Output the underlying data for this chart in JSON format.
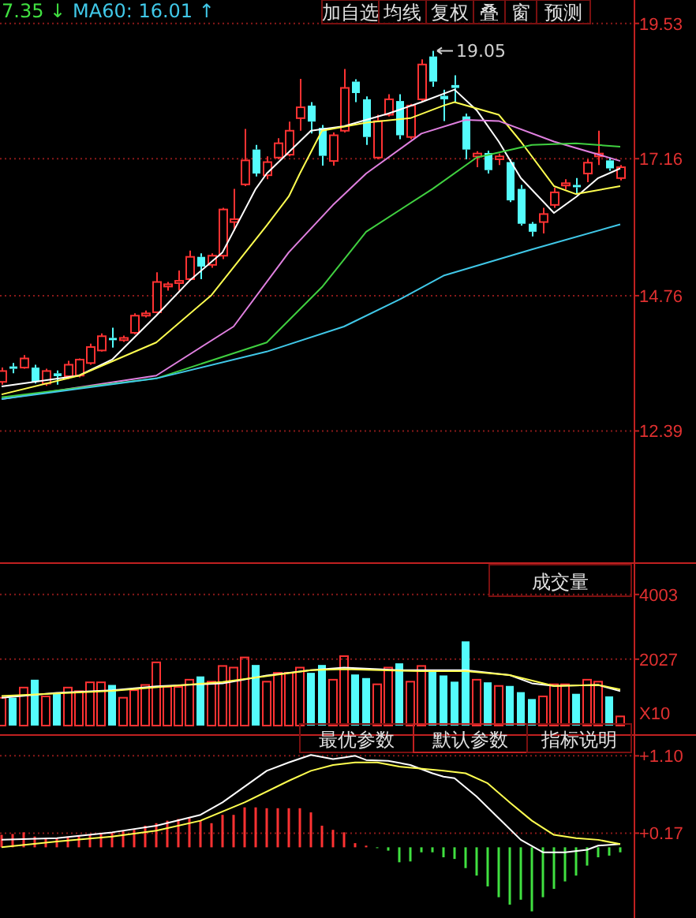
{
  "chart_data": [
    {
      "type": "candlestick",
      "categories": [
        null,
        null,
        null,
        null,
        null,
        null,
        null,
        null,
        null,
        null,
        null,
        null,
        null,
        null,
        null,
        null,
        null,
        null,
        null,
        null,
        null,
        null,
        null,
        null,
        null,
        null,
        null,
        null,
        null,
        null,
        null,
        null,
        null,
        null,
        null,
        null,
        null,
        null,
        null,
        null,
        null,
        null,
        null,
        null,
        null,
        null,
        null,
        null,
        null,
        null,
        null,
        null,
        null,
        null,
        null,
        null,
        null
      ],
      "ohlc": [
        [
          13.25,
          13.5,
          13.2,
          13.44
        ],
        [
          13.52,
          13.58,
          13.4,
          13.48
        ],
        [
          13.5,
          13.72,
          13.48,
          13.66
        ],
        [
          13.5,
          13.55,
          13.22,
          13.25
        ],
        [
          13.22,
          13.48,
          13.18,
          13.44
        ],
        [
          13.4,
          13.45,
          13.2,
          13.35
        ],
        [
          13.35,
          13.62,
          13.3,
          13.55
        ],
        [
          13.36,
          13.66,
          13.33,
          13.64
        ],
        [
          13.58,
          13.92,
          13.55,
          13.86
        ],
        [
          13.8,
          14.1,
          13.78,
          14.05
        ],
        [
          14.02,
          14.2,
          13.85,
          13.98
        ],
        [
          13.98,
          14.06,
          13.95,
          14.02
        ],
        [
          14.11,
          14.45,
          14.08,
          14.41
        ],
        [
          14.41,
          14.5,
          14.38,
          14.45
        ],
        [
          14.47,
          15.17,
          14.45,
          15.0
        ],
        [
          14.92,
          15.0,
          14.85,
          14.96
        ],
        [
          14.98,
          15.2,
          14.85,
          15.02
        ],
        [
          15.05,
          15.55,
          15.02,
          15.44
        ],
        [
          15.44,
          15.5,
          15.05,
          15.27
        ],
        [
          15.3,
          15.5,
          15.25,
          15.46
        ],
        [
          15.46,
          16.3,
          15.4,
          16.27
        ],
        [
          16.05,
          16.63,
          15.9,
          16.1
        ],
        [
          16.71,
          17.68,
          16.68,
          17.13
        ],
        [
          17.32,
          17.4,
          16.85,
          16.9
        ],
        [
          16.87,
          17.2,
          16.8,
          17.1
        ],
        [
          17.18,
          17.52,
          17.15,
          17.43
        ],
        [
          17.23,
          17.81,
          17.2,
          17.65
        ],
        [
          17.87,
          18.56,
          17.65,
          18.06
        ],
        [
          18.09,
          18.15,
          17.6,
          17.81
        ],
        [
          17.7,
          17.75,
          17.04,
          17.21
        ],
        [
          17.12,
          17.62,
          17.04,
          17.57
        ],
        [
          17.65,
          18.73,
          17.62,
          18.4
        ],
        [
          18.51,
          18.55,
          18.15,
          18.31
        ],
        [
          18.2,
          18.25,
          17.4,
          17.54
        ],
        [
          17.18,
          17.93,
          17.15,
          17.82
        ],
        [
          17.93,
          18.29,
          17.9,
          18.2
        ],
        [
          18.17,
          18.29,
          17.5,
          17.57
        ],
        [
          17.54,
          18.12,
          17.5,
          18.09
        ],
        [
          18.2,
          18.9,
          18.15,
          18.81
        ],
        [
          18.95,
          19.05,
          18.42,
          18.51
        ],
        [
          18.26,
          18.37,
          17.82,
          18.2
        ],
        [
          18.45,
          18.62,
          18.15,
          18.4
        ],
        [
          17.9,
          17.95,
          17.15,
          17.32
        ],
        [
          17.2,
          17.29,
          17.01,
          17.25
        ],
        [
          17.26,
          17.3,
          16.9,
          16.96
        ],
        [
          17.15,
          17.25,
          17.05,
          17.2
        ],
        [
          17.1,
          17.15,
          16.4,
          16.43
        ],
        [
          16.63,
          16.7,
          15.99,
          16.02
        ],
        [
          16.02,
          16.05,
          15.8,
          15.88
        ],
        [
          16.05,
          16.3,
          15.85,
          16.19
        ],
        [
          16.35,
          16.65,
          16.3,
          16.57
        ],
        [
          16.69,
          16.8,
          16.62,
          16.73
        ],
        [
          16.7,
          16.82,
          16.55,
          16.66
        ],
        [
          16.9,
          17.15,
          16.75,
          17.09
        ],
        [
          17.2,
          17.65,
          17.05,
          17.25
        ],
        [
          17.13,
          17.18,
          16.95,
          16.99
        ],
        [
          16.82,
          17.05,
          16.78,
          17.01
        ]
      ],
      "series": [
        {
          "type": "line",
          "color": "#ffffff",
          "values": [
            13.17,
            null,
            null,
            null,
            null,
            null,
            null,
            13.36,
            null,
            null,
            13.64,
            null,
            null,
            null,
            14.41,
            null,
            null,
            15.02,
            null,
            null,
            15.52,
            null,
            null,
            16.63,
            16.9,
            null,
            null,
            null,
            17.65,
            null,
            null,
            17.73,
            null,
            null,
            null,
            17.95,
            null,
            null,
            18.15,
            null,
            null,
            18.37,
            null,
            18.01,
            null,
            17.46,
            null,
            16.82,
            null,
            null,
            16.21,
            null,
            16.49,
            null,
            16.82,
            null,
            16.99
          ]
        },
        {
          "type": "line",
          "color": "#ffff50",
          "values": [
            13.03,
            null,
            null,
            null,
            null,
            null,
            null,
            13.36,
            null,
            null,
            null,
            null,
            null,
            null,
            13.94,
            null,
            null,
            null,
            null,
            14.77,
            null,
            null,
            null,
            null,
            15.99,
            null,
            16.5,
            16.9,
            null,
            17.65,
            null,
            null,
            null,
            17.79,
            null,
            null,
            null,
            17.87,
            null,
            null,
            18.09,
            18.15,
            null,
            null,
            null,
            17.93,
            null,
            17.46,
            null,
            null,
            16.68,
            null,
            16.54,
            null,
            null,
            null,
            16.68
          ]
        },
        {
          "type": "line",
          "color": "#e080e0",
          "values": [
            12.95,
            null,
            null,
            null,
            null,
            null,
            null,
            null,
            null,
            null,
            null,
            null,
            null,
            null,
            13.36,
            null,
            null,
            null,
            null,
            null,
            null,
            14.22,
            null,
            null,
            null,
            null,
            15.52,
            null,
            null,
            null,
            16.35,
            null,
            null,
            16.9,
            null,
            null,
            null,
            null,
            17.6,
            null,
            null,
            null,
            17.84,
            null,
            null,
            17.82,
            null,
            null,
            null,
            null,
            17.46,
            null,
            null,
            null,
            null,
            null,
            17.12
          ]
        },
        {
          "type": "line",
          "color": "#40d040",
          "values": [
            12.98,
            null,
            null,
            null,
            null,
            null,
            null,
            null,
            null,
            null,
            null,
            null,
            null,
            null,
            13.31,
            null,
            null,
            null,
            null,
            null,
            null,
            null,
            null,
            null,
            13.94,
            null,
            null,
            null,
            null,
            14.91,
            null,
            null,
            null,
            15.88,
            null,
            null,
            null,
            null,
            null,
            16.63,
            null,
            null,
            null,
            17.18,
            null,
            null,
            null,
            null,
            17.4,
            null,
            null,
            null,
            17.43,
            null,
            null,
            null,
            17.37
          ]
        },
        {
          "type": "line",
          "color": "#40c8e8",
          "values": [
            12.95,
            null,
            null,
            null,
            null,
            null,
            null,
            null,
            null,
            null,
            null,
            null,
            null,
            null,
            13.31,
            null,
            null,
            null,
            null,
            null,
            null,
            null,
            null,
            null,
            13.78,
            null,
            null,
            null,
            null,
            null,
            null,
            14.22,
            null,
            null,
            null,
            null,
            14.69,
            null,
            null,
            null,
            15.11,
            null,
            null,
            null,
            null,
            null,
            null,
            null,
            15.57,
            null,
            null,
            null,
            null,
            null,
            null,
            null,
            16.01
          ]
        }
      ],
      "ylim": [
        10.13,
        19.94
      ],
      "yticks": [
        12.39,
        14.76,
        17.16,
        19.53
      ],
      "grid": "y",
      "annotations": [
        "7.35 ↓",
        "MA60: 16.01 ↑",
        "加自选",
        "均线",
        "复权",
        "叠",
        "窗",
        "预测",
        "19.05"
      ]
    },
    {
      "type": "bar",
      "categories": [
        null,
        null,
        null,
        null,
        null,
        null,
        null,
        null,
        null,
        null,
        null,
        null,
        null,
        null,
        null,
        null,
        null,
        null,
        null,
        null,
        null,
        null,
        null,
        null,
        null,
        null,
        null,
        null,
        null,
        null,
        null,
        null,
        null,
        null,
        null,
        null,
        null,
        null,
        null,
        null,
        null,
        null,
        null,
        null,
        null,
        null,
        null,
        null,
        null,
        null,
        null,
        null,
        null,
        null,
        null,
        null,
        null
      ],
      "series": [
        {
          "type": "bar",
          "values": [
            850,
            850,
            1160,
            1400,
            890,
            970,
            1160,
            1050,
            1320,
            1320,
            1240,
            850,
            1080,
            1240,
            1930,
            1180,
            1180,
            1400,
            1500,
            1340,
            1820,
            1770,
            2080,
            1850,
            1340,
            1610,
            1610,
            1770,
            1610,
            1850,
            1400,
            2120,
            1560,
            1450,
            1260,
            1770,
            1900,
            1340,
            1820,
            1660,
            1530,
            1340,
            2570,
            1400,
            1320,
            1210,
            1210,
            1020,
            810,
            890,
            1260,
            1260,
            970,
            1400,
            1340,
            890,
            280
          ],
          "colors": [
            "#ff3232",
            "#54fcfc",
            "#ff3232",
            "#54fcfc",
            "#ff3232",
            "#54fcfc",
            "#ff3232",
            "#ff3232",
            "#ff3232",
            "#ff3232",
            "#54fcfc",
            "#ff3232",
            "#ff3232",
            "#ff3232",
            "#ff3232",
            "#ff3232",
            "#ff3232",
            "#ff3232",
            "#54fcfc",
            "#ff3232",
            "#ff3232",
            "#ff3232",
            "#ff3232",
            "#54fcfc",
            "#ff3232",
            "#ff3232",
            "#ff3232",
            "#ff3232",
            "#54fcfc",
            "#54fcfc",
            "#ff3232",
            "#ff3232",
            "#54fcfc",
            "#54fcfc",
            "#ff3232",
            "#ff3232",
            "#54fcfc",
            "#ff3232",
            "#ff3232",
            "#54fcfc",
            "#54fcfc",
            "#54fcfc",
            "#54fcfc",
            "#ff3232",
            "#54fcfc",
            "#ff3232",
            "#54fcfc",
            "#54fcfc",
            "#54fcfc",
            "#ff3232",
            "#ff3232",
            "#ff3232",
            "#54fcfc",
            "#ff3232",
            "#ff3232",
            "#54fcfc",
            "#ff3232"
          ]
        },
        {
          "type": "line",
          "color": "#ffffff",
          "values": [
            850,
            null,
            null,
            null,
            null,
            1000,
            null,
            null,
            null,
            null,
            1080,
            null,
            null,
            null,
            1200,
            null,
            null,
            null,
            null,
            null,
            1290,
            null,
            null,
            null,
            1530,
            null,
            null,
            null,
            1690,
            null,
            null,
            1770,
            null,
            null,
            null,
            null,
            1690,
            null,
            null,
            null,
            1690,
            null,
            1690,
            null,
            null,
            null,
            1540,
            null,
            1290,
            null,
            1210,
            null,
            null,
            null,
            1240,
            null,
            1050
          ]
        },
        {
          "type": "line",
          "color": "#ffff50",
          "values": [
            900,
            null,
            null,
            null,
            null,
            null,
            null,
            null,
            null,
            null,
            1060,
            null,
            null,
            null,
            null,
            null,
            null,
            null,
            null,
            null,
            1330,
            null,
            null,
            null,
            null,
            null,
            null,
            null,
            1690,
            null,
            null,
            1720,
            null,
            null,
            null,
            null,
            null,
            null,
            1660,
            null,
            null,
            null,
            1660,
            null,
            null,
            null,
            1540,
            null,
            null,
            null,
            1210,
            null,
            null,
            null,
            1240,
            null,
            1100
          ]
        }
      ],
      "ylim": [
        0,
        4960
      ],
      "yticks": [
        2027,
        4003
      ],
      "grid": "y",
      "annotations": [
        "成交量",
        "X10"
      ]
    },
    {
      "type": "bar",
      "categories": [
        null,
        null,
        null,
        null,
        null,
        null,
        null,
        null,
        null,
        null,
        null,
        null,
        null,
        null,
        null,
        null,
        null,
        null,
        null,
        null,
        null,
        null,
        null,
        null,
        null,
        null,
        null,
        null,
        null,
        null,
        null,
        null,
        null,
        null,
        null,
        null,
        null,
        null,
        null,
        null,
        null,
        null,
        null,
        null,
        null,
        null,
        null,
        null,
        null,
        null,
        null,
        null,
        null,
        null,
        null,
        null,
        null
      ],
      "series": [
        {
          "type": "bar",
          "values": [
            0.15,
            0.16,
            0.18,
            0.13,
            0.11,
            0.11,
            0.13,
            0.13,
            0.15,
            0.16,
            0.18,
            0.2,
            0.21,
            0.26,
            0.29,
            0.32,
            0.34,
            0.35,
            0.32,
            0.29,
            0.39,
            0.39,
            0.48,
            0.48,
            0.47,
            0.47,
            0.47,
            0.47,
            0.42,
            0.26,
            0.21,
            0.18,
            0.05,
            0.02,
            -0.01,
            -0.04,
            -0.18,
            -0.17,
            -0.06,
            -0.06,
            -0.12,
            -0.14,
            -0.25,
            -0.34,
            -0.47,
            -0.6,
            -0.69,
            -0.63,
            -0.77,
            -0.6,
            -0.5,
            -0.41,
            -0.34,
            -0.22,
            -0.12,
            -0.1,
            -0.06
          ],
          "colors": [
            "#ff3232",
            "#ff3232",
            "#ff3232",
            "#ff3232",
            "#ff3232",
            "#ff3232",
            "#ff3232",
            "#ff3232",
            "#ff3232",
            "#ff3232",
            "#ff3232",
            "#ff3232",
            "#ff3232",
            "#ff3232",
            "#ff3232",
            "#ff3232",
            "#ff3232",
            "#ff3232",
            "#ff3232",
            "#ff3232",
            "#ff3232",
            "#ff3232",
            "#ff3232",
            "#ff3232",
            "#ff3232",
            "#ff3232",
            "#ff3232",
            "#ff3232",
            "#ff3232",
            "#ff3232",
            "#ff3232",
            "#ff3232",
            "#ff3232",
            "#ff3232",
            "#40e040",
            "#40e040",
            "#40e040",
            "#40e040",
            "#40e040",
            "#40e040",
            "#40e040",
            "#40e040",
            "#40e040",
            "#40e040",
            "#40e040",
            "#40e040",
            "#40e040",
            "#40e040",
            "#40e040",
            "#40e040",
            "#40e040",
            "#40e040",
            "#40e040",
            "#40e040",
            "#40e040",
            "#40e040",
            "#40e040"
          ]
        },
        {
          "type": "line",
          "color": "#ffffff",
          "values": [
            0.09,
            null,
            null,
            null,
            null,
            0.11,
            null,
            null,
            null,
            null,
            0.18,
            null,
            null,
            null,
            0.26,
            null,
            null,
            null,
            0.39,
            null,
            0.54,
            null,
            0.73,
            null,
            0.92,
            null,
            1.02,
            null,
            1.11,
            null,
            1.06,
            1.08,
            1.1,
            1.05,
            null,
            1.04,
            null,
            0.99,
            null,
            0.89,
            0.85,
            0.83,
            null,
            0.61,
            null,
            0.35,
            null,
            0.09,
            null,
            -0.06,
            null,
            -0.06,
            null,
            -0.03,
            0.02,
            null,
            0.04
          ]
        },
        {
          "type": "line",
          "color": "#ffff50",
          "values": [
            0.0,
            null,
            null,
            null,
            null,
            0.07,
            null,
            null,
            null,
            null,
            0.13,
            null,
            null,
            null,
            0.2,
            null,
            null,
            null,
            0.32,
            null,
            null,
            null,
            0.54,
            null,
            null,
            null,
            0.8,
            null,
            0.92,
            null,
            0.99,
            null,
            1.02,
            null,
            1.02,
            null,
            0.97,
            null,
            null,
            null,
            0.92,
            null,
            0.89,
            null,
            0.77,
            null,
            0.54,
            null,
            0.32,
            null,
            0.15,
            null,
            0.11,
            null,
            0.09,
            null,
            0.04
          ]
        }
      ],
      "ylim": [
        -0.85,
        1.35
      ],
      "yticks": [
        {
          "value": 0.17,
          "label": "+0.17"
        },
        {
          "value": 1.1,
          "label": "+1.10"
        }
      ],
      "grid": "y",
      "annotations": [
        "最优参数",
        "默认参数",
        "指标说明"
      ]
    }
  ]
}
